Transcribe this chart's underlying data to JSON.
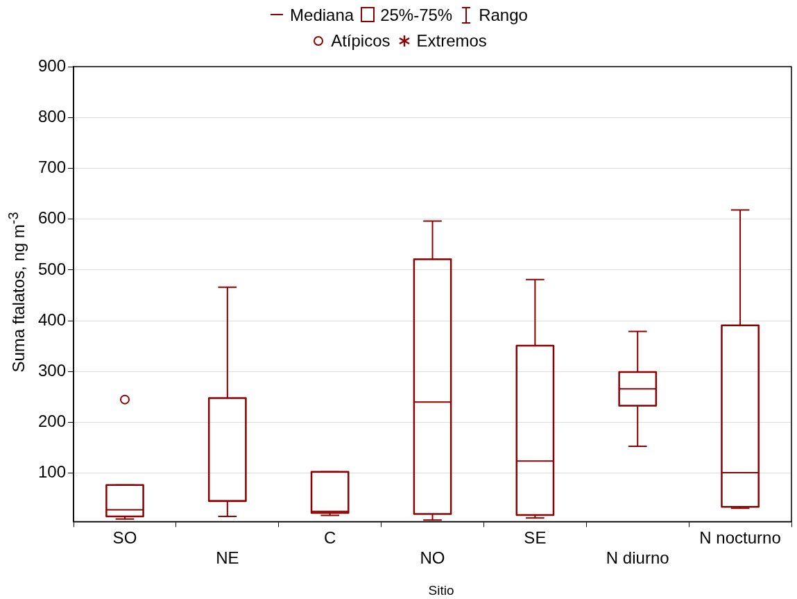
{
  "chart_data": {
    "type": "box",
    "xlabel": "Sitio",
    "ylabel": "Suma ftalatos, ng m$^{-3}$",
    "categories": [
      "SO",
      "NE",
      "C",
      "NO",
      "SE",
      "N diurno",
      "N nocturno"
    ],
    "color": "#8b0000",
    "boxes": [
      {
        "low": 10,
        "q1": 15,
        "median": 28,
        "q3": 77,
        "high": 77,
        "outliers": [
          245
        ]
      },
      {
        "low": 15,
        "q1": 45,
        "median": 46,
        "q3": 248,
        "high": 466
      },
      {
        "low": 17,
        "q1": 22,
        "median": 25,
        "q3": 103,
        "high": 103
      },
      {
        "low": 8,
        "q1": 20,
        "median": 240,
        "q3": 521,
        "high": 596
      },
      {
        "low": 12,
        "q1": 18,
        "median": 124,
        "q3": 351,
        "high": 481
      },
      {
        "low": 153,
        "q1": 233,
        "median": 266,
        "q3": 299,
        "high": 379
      },
      {
        "low": 31,
        "q1": 34,
        "median": 101,
        "q3": 391,
        "high": 618
      }
    ],
    "ylim": [
      5,
      900
    ],
    "yticks": [
      100,
      200,
      300,
      400,
      500,
      600,
      700,
      800,
      900
    ],
    "grid": "y",
    "annotations": [
      "Mediana",
      "25%-75%",
      "Rango",
      "Atípicos",
      "Extremos"
    ]
  }
}
